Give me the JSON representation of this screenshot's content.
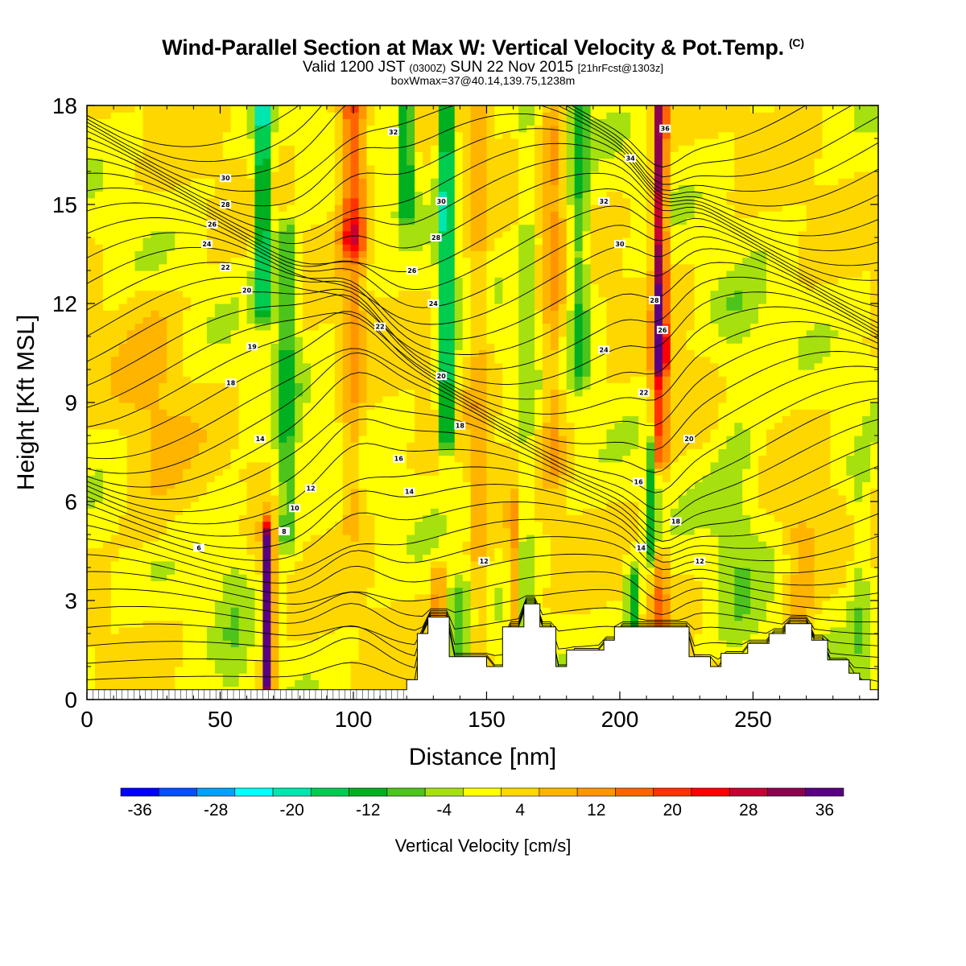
{
  "header": {
    "title": "Wind-Parallel Section at Max W: Vertical Velocity & Pot.Temp.",
    "copyright": "(C)",
    "valid_prefix": "Valid 1200 JST",
    "valid_zulu": "(0300Z)",
    "valid_date": "SUN 22 Nov 2015",
    "forecast": "[21hrFcst@1303z]",
    "box_info": "boxWmax=37@40.14,139.75,1238m"
  },
  "colors": {
    "scale": [
      "#0000ff",
      "#0050ff",
      "#00a0ff",
      "#00ffff",
      "#00e6b0",
      "#00cc50",
      "#00b020",
      "#4cc41c",
      "#a6e00e",
      "#ffff00",
      "#ffd700",
      "#ffb400",
      "#ff9600",
      "#ff6400",
      "#ff3200",
      "#ff0000",
      "#c80032",
      "#8c0050",
      "#5a0082"
    ],
    "terrain": "#ffffff",
    "contour": "#000000"
  },
  "chart_data": {
    "type": "heatmap",
    "xlabel": "Distance [nm]",
    "ylabel": "Height [Kft MSL]",
    "xlim": [
      0,
      297
    ],
    "ylim": [
      0,
      18
    ],
    "xticks": [
      0,
      50,
      100,
      150,
      200,
      250
    ],
    "yticks": [
      0,
      3,
      6,
      9,
      12,
      15,
      18
    ],
    "colorbar": {
      "label": "Vertical Velocity [cm/s]",
      "levels": [
        -36,
        -32,
        -28,
        -24,
        -20,
        -16,
        -12,
        -8,
        -4,
        0,
        4,
        8,
        12,
        16,
        20,
        24,
        28,
        32,
        36
      ],
      "tick_labels": [
        -36,
        -28,
        -20,
        -12,
        -4,
        4,
        12,
        20,
        28,
        36
      ]
    },
    "features": [
      {
        "x": 68,
        "y0": 0.5,
        "y1": 4.8,
        "w": 4,
        "value": 38
      },
      {
        "x": 215,
        "y0": 10.5,
        "y1": 18,
        "w": 5,
        "value": 32
      },
      {
        "x": 215,
        "y0": 7.5,
        "y1": 10.5,
        "w": 6,
        "value": 20
      },
      {
        "x": 100,
        "y0": 14,
        "y1": 18,
        "w": 10,
        "value": 18
      },
      {
        "x": 132,
        "y0": 2.3,
        "y1": 3.6,
        "w": 4,
        "value": 14
      },
      {
        "x": 100,
        "y0": 5.5,
        "y1": 14,
        "w": 8,
        "value": 8
      },
      {
        "x": 147,
        "y0": 0,
        "y1": 18,
        "w": 7,
        "value": 6
      },
      {
        "x": 175,
        "y0": 7,
        "y1": 18,
        "w": 8,
        "value": 8
      },
      {
        "x": 160,
        "y0": 1,
        "y1": 5.5,
        "w": 4,
        "value": 10
      },
      {
        "x": 215,
        "y0": 2.2,
        "y1": 4,
        "w": 6,
        "value": 12
      },
      {
        "x": 268,
        "y0": 2.5,
        "y1": 5,
        "w": 12,
        "value": 7
      },
      {
        "x": 25,
        "y0": 5,
        "y1": 12,
        "w": 25,
        "value": 4
      },
      {
        "x": 135,
        "y0": 8,
        "y1": 18,
        "w": 6,
        "value": -22
      },
      {
        "x": 66,
        "y0": 12,
        "y1": 18,
        "w": 6,
        "value": -22
      },
      {
        "x": 75,
        "y0": 5,
        "y1": 14,
        "w": 8,
        "value": -12
      },
      {
        "x": 120,
        "y0": 15,
        "y1": 18,
        "w": 6,
        "value": -16
      },
      {
        "x": 185,
        "y0": 10,
        "y1": 18,
        "w": 7,
        "value": -12
      },
      {
        "x": 205,
        "y0": 2.2,
        "y1": 3.5,
        "w": 5,
        "value": -16
      },
      {
        "x": 212,
        "y0": 4.5,
        "y1": 7.5,
        "w": 4,
        "value": -14
      },
      {
        "x": 165,
        "y0": 0,
        "y1": 18,
        "w": 7,
        "value": -5
      },
      {
        "x": 244,
        "y0": 2,
        "y1": 12,
        "w": 18,
        "value": -5
      },
      {
        "x": 55,
        "y0": 0.5,
        "y1": 6,
        "w": 12,
        "value": -4
      },
      {
        "x": 140,
        "y0": 0.7,
        "y1": 3.2,
        "w": 8,
        "value": -8
      },
      {
        "x": 290,
        "y0": 0.5,
        "y1": 7,
        "w": 8,
        "value": -6
      }
    ],
    "terrain": [
      [
        0,
        0.3
      ],
      [
        120,
        0.3
      ],
      [
        120,
        0.6
      ],
      [
        124,
        0.6
      ],
      [
        124,
        2.0
      ],
      [
        128,
        2.0
      ],
      [
        128,
        2.5
      ],
      [
        136,
        2.5
      ],
      [
        136,
        1.3
      ],
      [
        150,
        1.3
      ],
      [
        150,
        1.0
      ],
      [
        156,
        1.0
      ],
      [
        156,
        2.2
      ],
      [
        164,
        2.2
      ],
      [
        164,
        2.9
      ],
      [
        170,
        2.9
      ],
      [
        170,
        2.2
      ],
      [
        176,
        2.2
      ],
      [
        176,
        1.0
      ],
      [
        180,
        1.0
      ],
      [
        180,
        1.5
      ],
      [
        194,
        1.5
      ],
      [
        194,
        1.8
      ],
      [
        198,
        1.8
      ],
      [
        198,
        2.2
      ],
      [
        226,
        2.2
      ],
      [
        226,
        1.3
      ],
      [
        234,
        1.3
      ],
      [
        234,
        1.0
      ],
      [
        238,
        1.0
      ],
      [
        238,
        1.4
      ],
      [
        248,
        1.4
      ],
      [
        248,
        1.7
      ],
      [
        256,
        1.7
      ],
      [
        256,
        2.0
      ],
      [
        262,
        2.0
      ],
      [
        262,
        2.3
      ],
      [
        272,
        2.3
      ],
      [
        272,
        1.8
      ],
      [
        278,
        1.8
      ],
      [
        278,
        1.2
      ],
      [
        286,
        1.2
      ],
      [
        286,
        0.8
      ],
      [
        290,
        0.8
      ],
      [
        290,
        0.6
      ],
      [
        294,
        0.6
      ],
      [
        294,
        0.3
      ],
      [
        297,
        0.3
      ]
    ],
    "contour_labels": [
      {
        "x": 52,
        "y": 15.0,
        "text": "28"
      },
      {
        "x": 47,
        "y": 14.4,
        "text": "26"
      },
      {
        "x": 45,
        "y": 13.8,
        "text": "24"
      },
      {
        "x": 52,
        "y": 13.1,
        "text": "22"
      },
      {
        "x": 60,
        "y": 12.4,
        "text": "20"
      },
      {
        "x": 62,
        "y": 10.7,
        "text": "19"
      },
      {
        "x": 54,
        "y": 9.6,
        "text": "18"
      },
      {
        "x": 65,
        "y": 7.9,
        "text": "14"
      },
      {
        "x": 84,
        "y": 6.4,
        "text": "12"
      },
      {
        "x": 78,
        "y": 5.8,
        "text": "10"
      },
      {
        "x": 74,
        "y": 5.1,
        "text": "8"
      },
      {
        "x": 42,
        "y": 4.6,
        "text": "6"
      },
      {
        "x": 52,
        "y": 15.8,
        "text": "30"
      },
      {
        "x": 115,
        "y": 17.2,
        "text": "32"
      },
      {
        "x": 133,
        "y": 15.1,
        "text": "30"
      },
      {
        "x": 131,
        "y": 14.0,
        "text": "28"
      },
      {
        "x": 122,
        "y": 13.0,
        "text": "26"
      },
      {
        "x": 130,
        "y": 12.0,
        "text": "24"
      },
      {
        "x": 110,
        "y": 11.3,
        "text": "22"
      },
      {
        "x": 133,
        "y": 9.8,
        "text": "20"
      },
      {
        "x": 140,
        "y": 8.3,
        "text": "18"
      },
      {
        "x": 117,
        "y": 7.3,
        "text": "16"
      },
      {
        "x": 121,
        "y": 6.3,
        "text": "14"
      },
      {
        "x": 149,
        "y": 4.2,
        "text": "12"
      },
      {
        "x": 217,
        "y": 17.3,
        "text": "36"
      },
      {
        "x": 204,
        "y": 16.4,
        "text": "34"
      },
      {
        "x": 194,
        "y": 15.1,
        "text": "32"
      },
      {
        "x": 200,
        "y": 13.8,
        "text": "30"
      },
      {
        "x": 213,
        "y": 12.1,
        "text": "28"
      },
      {
        "x": 216,
        "y": 11.2,
        "text": "26"
      },
      {
        "x": 194,
        "y": 10.6,
        "text": "24"
      },
      {
        "x": 209,
        "y": 9.3,
        "text": "22"
      },
      {
        "x": 226,
        "y": 7.9,
        "text": "20"
      },
      {
        "x": 207,
        "y": 6.6,
        "text": "16"
      },
      {
        "x": 221,
        "y": 5.4,
        "text": "18"
      },
      {
        "x": 208,
        "y": 4.6,
        "text": "14"
      },
      {
        "x": 230,
        "y": 4.2,
        "text": "12"
      }
    ]
  }
}
